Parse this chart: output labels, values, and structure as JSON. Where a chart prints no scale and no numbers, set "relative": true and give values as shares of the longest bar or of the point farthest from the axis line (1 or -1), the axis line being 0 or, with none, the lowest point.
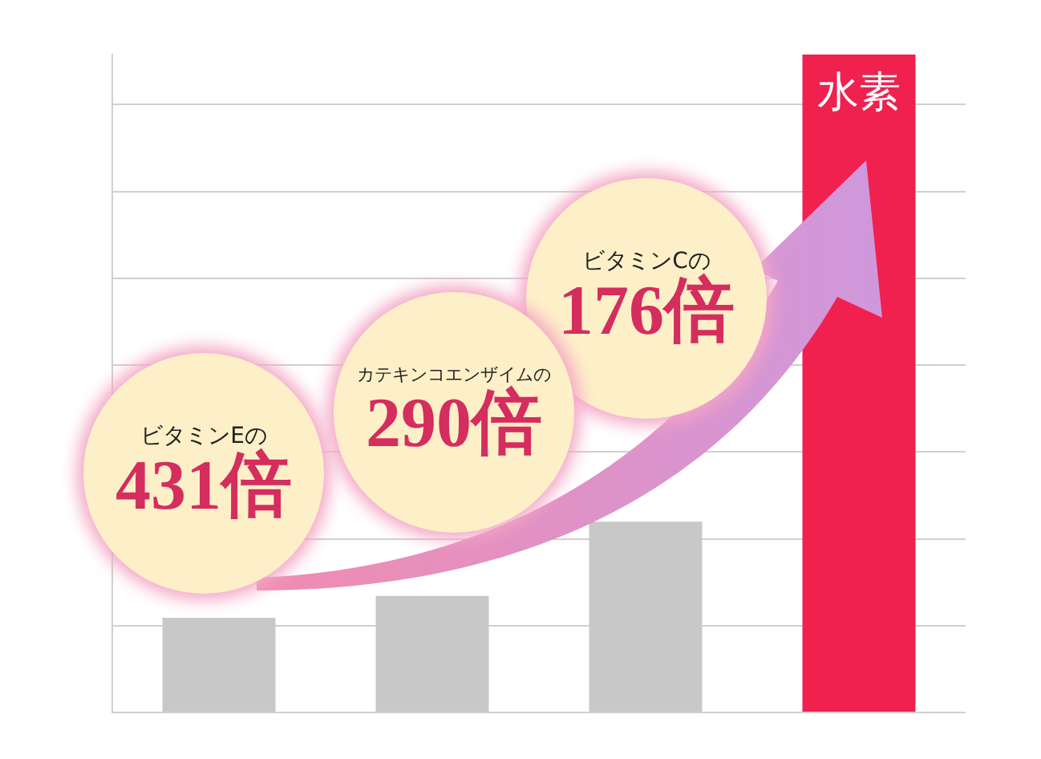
{
  "chart_data": {
    "type": "bar",
    "relative": true,
    "categories": [
      null,
      null,
      null,
      "水素"
    ],
    "values": [
      0.144,
      0.177,
      0.29,
      1
    ],
    "colors": [
      "#c8c8c8",
      "#c8c8c8",
      "#c8c8c8",
      "#f0204f"
    ],
    "grid": "y",
    "annotations": [
      "ビタミンEの\n431倍",
      "カテキンコエンザイムの\n290倍",
      "ビタミンCの\n176倍"
    ]
  }
}
